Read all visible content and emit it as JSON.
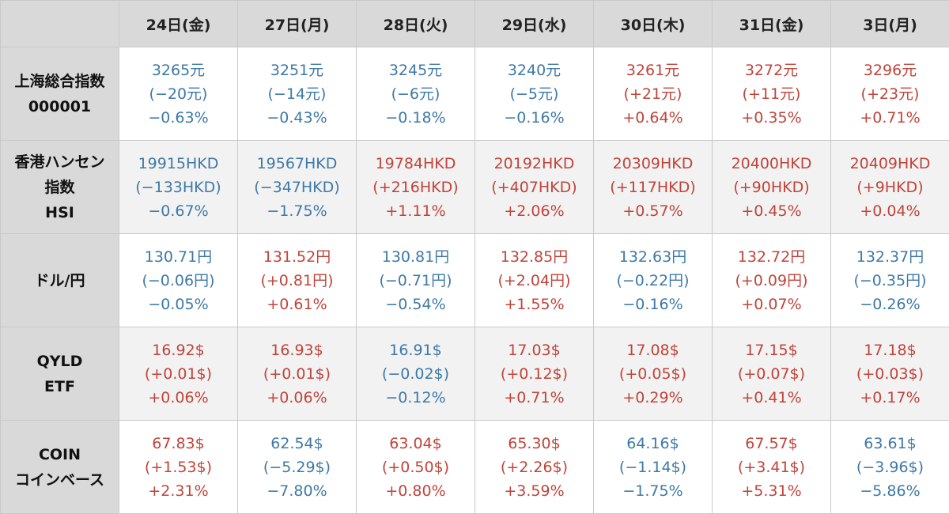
{
  "colors": {
    "up": "#c0443a",
    "down": "#3e79a6",
    "header_bg": "#d9d9d9"
  },
  "headers": [
    "24日(金)",
    "27日(月)",
    "28日(火)",
    "29日(水)",
    "30日(木)",
    "31日(金)",
    "3日(月)"
  ],
  "rows": [
    {
      "label": [
        "上海総合指数",
        "000001"
      ],
      "cells": [
        {
          "price": "3265元",
          "change": "(−20元)",
          "pct": "−0.63%",
          "dir": "down"
        },
        {
          "price": "3251元",
          "change": "(−14元)",
          "pct": "−0.43%",
          "dir": "down"
        },
        {
          "price": "3245元",
          "change": "(−6元)",
          "pct": "−0.18%",
          "dir": "down"
        },
        {
          "price": "3240元",
          "change": "(−5元)",
          "pct": "−0.16%",
          "dir": "down"
        },
        {
          "price": "3261元",
          "change": "(+21元)",
          "pct": "+0.64%",
          "dir": "up"
        },
        {
          "price": "3272元",
          "change": "(+11元)",
          "pct": "+0.35%",
          "dir": "up"
        },
        {
          "price": "3296元",
          "change": "(+23元)",
          "pct": "+0.71%",
          "dir": "up"
        }
      ]
    },
    {
      "label": [
        "香港ハンセン",
        "指数",
        "HSI"
      ],
      "cells": [
        {
          "price": "19915HKD",
          "change": "(−133HKD)",
          "pct": "−0.67%",
          "dir": "down"
        },
        {
          "price": "19567HKD",
          "change": "(−347HKD)",
          "pct": "−1.75%",
          "dir": "down"
        },
        {
          "price": "19784HKD",
          "change": "(+216HKD)",
          "pct": "+1.11%",
          "dir": "up"
        },
        {
          "price": "20192HKD",
          "change": "(+407HKD)",
          "pct": "+2.06%",
          "dir": "up"
        },
        {
          "price": "20309HKD",
          "change": "(+117HKD)",
          "pct": "+0.57%",
          "dir": "up"
        },
        {
          "price": "20400HKD",
          "change": "(+90HKD)",
          "pct": "+0.45%",
          "dir": "up"
        },
        {
          "price": "20409HKD",
          "change": "(+9HKD)",
          "pct": "+0.04%",
          "dir": "up"
        }
      ]
    },
    {
      "label": [
        "ドル/円"
      ],
      "cells": [
        {
          "price": "130.71円",
          "change": "(−0.06円)",
          "pct": "−0.05%",
          "dir": "down"
        },
        {
          "price": "131.52円",
          "change": "(+0.81円)",
          "pct": "+0.61%",
          "dir": "up"
        },
        {
          "price": "130.81円",
          "change": "(−0.71円)",
          "pct": "−0.54%",
          "dir": "down"
        },
        {
          "price": "132.85円",
          "change": "(+2.04円)",
          "pct": "+1.55%",
          "dir": "up"
        },
        {
          "price": "132.63円",
          "change": "(−0.22円)",
          "pct": "−0.16%",
          "dir": "down"
        },
        {
          "price": "132.72円",
          "change": "(+0.09円)",
          "pct": "+0.07%",
          "dir": "up"
        },
        {
          "price": "132.37円",
          "change": "(−0.35円)",
          "pct": "−0.26%",
          "dir": "down"
        }
      ]
    },
    {
      "label": [
        "QYLD",
        "ETF"
      ],
      "cells": [
        {
          "price": "16.92$",
          "change": "(+0.01$)",
          "pct": "+0.06%",
          "dir": "up"
        },
        {
          "price": "16.93$",
          "change": "(+0.01$)",
          "pct": "+0.06%",
          "dir": "up"
        },
        {
          "price": "16.91$",
          "change": "(−0.02$)",
          "pct": "−0.12%",
          "dir": "down"
        },
        {
          "price": "17.03$",
          "change": "(+0.12$)",
          "pct": "+0.71%",
          "dir": "up"
        },
        {
          "price": "17.08$",
          "change": "(+0.05$)",
          "pct": "+0.29%",
          "dir": "up"
        },
        {
          "price": "17.15$",
          "change": "(+0.07$)",
          "pct": "+0.41%",
          "dir": "up"
        },
        {
          "price": "17.18$",
          "change": "(+0.03$)",
          "pct": "+0.17%",
          "dir": "up"
        }
      ]
    },
    {
      "label": [
        "COIN",
        "コインベース"
      ],
      "cells": [
        {
          "price": "67.83$",
          "change": "(+1.53$)",
          "pct": "+2.31%",
          "dir": "up"
        },
        {
          "price": "62.54$",
          "change": "(−5.29$)",
          "pct": "−7.80%",
          "dir": "down"
        },
        {
          "price": "63.04$",
          "change": "(+0.50$)",
          "pct": "+0.80%",
          "dir": "up"
        },
        {
          "price": "65.30$",
          "change": "(+2.26$)",
          "pct": "+3.59%",
          "dir": "up"
        },
        {
          "price": "64.16$",
          "change": "(−1.14$)",
          "pct": "−1.75%",
          "dir": "down"
        },
        {
          "price": "67.57$",
          "change": "(+3.41$)",
          "pct": "+5.31%",
          "dir": "up"
        },
        {
          "price": "63.61$",
          "change": "(−3.96$)",
          "pct": "−5.86%",
          "dir": "down"
        }
      ]
    }
  ]
}
